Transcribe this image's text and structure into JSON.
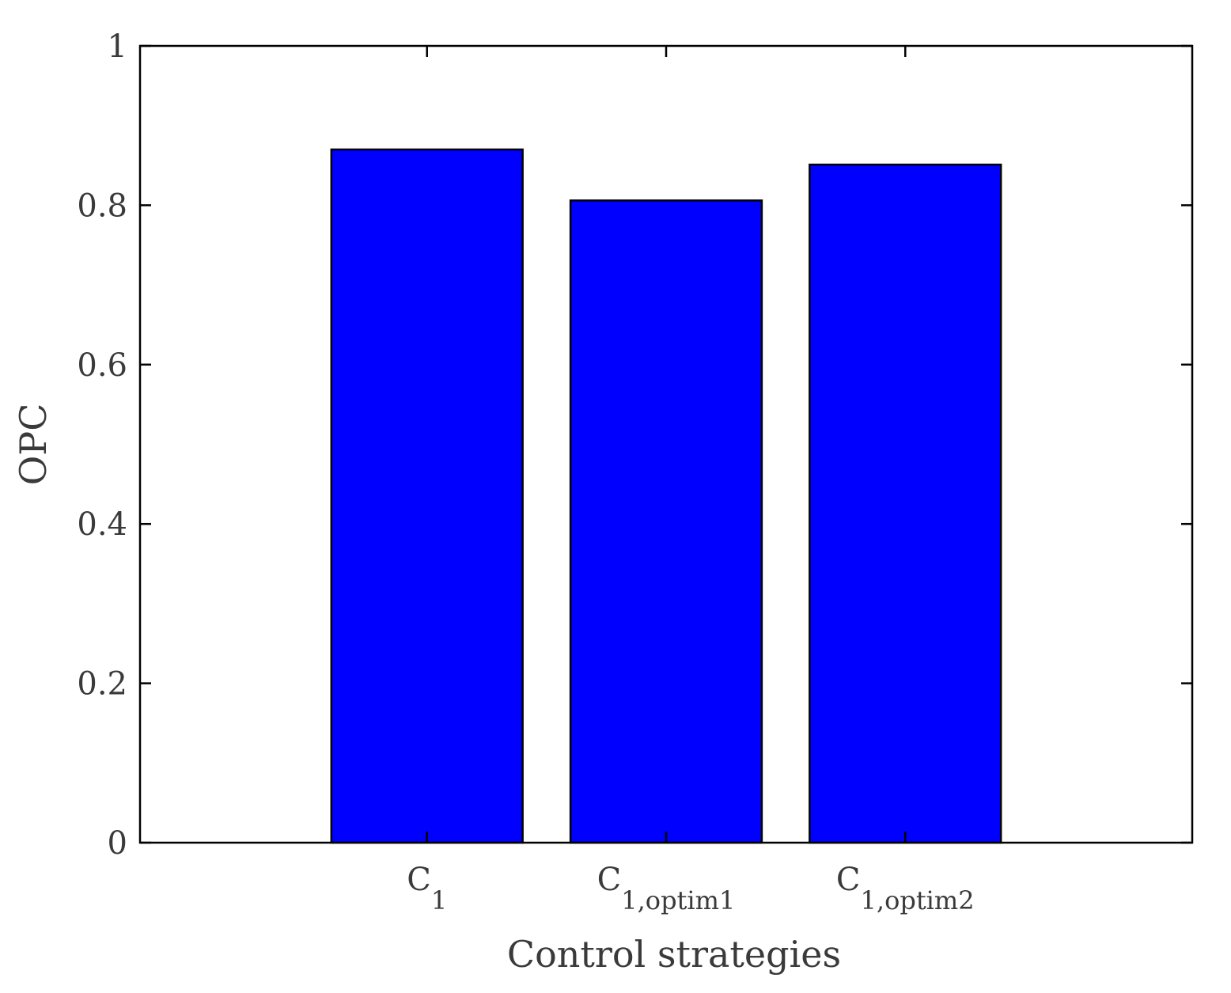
{
  "chart_data": {
    "type": "bar",
    "categories": [
      {
        "base": "C",
        "sub": "1"
      },
      {
        "base": "C",
        "sub": "1,optim1"
      },
      {
        "base": "C",
        "sub": "1,optim2"
      }
    ],
    "values": [
      0.87,
      0.806,
      0.851
    ],
    "xlim": [
      0.2,
      4.6
    ],
    "xticks": [
      1.4,
      2.4,
      3.4
    ],
    "ylim": [
      0,
      1
    ],
    "yticks": [
      0,
      0.2,
      0.4,
      0.6,
      0.8,
      1
    ],
    "ytick_labels": [
      "0",
      "0.2",
      "0.4",
      "0.6",
      "0.8",
      "1"
    ],
    "xlabel": "Control strategies",
    "ylabel": "OPC",
    "grid": false,
    "colors": {
      "bar_fill": "#0000ff",
      "bar_edge": "#000000",
      "axis": "#000000",
      "text": "#3a3a3a"
    }
  }
}
